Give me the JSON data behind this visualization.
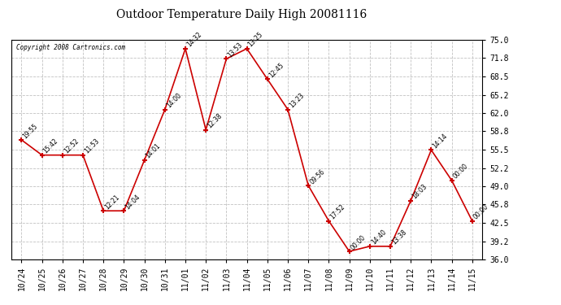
{
  "title": "Outdoor Temperature Daily High 20081116",
  "copyright": "Copyright 2008 Cartronics.com",
  "x_labels": [
    "10/24",
    "10/25",
    "10/26",
    "10/27",
    "10/28",
    "10/29",
    "10/30",
    "10/31",
    "11/01",
    "11/02",
    "11/03",
    "11/04",
    "11/05",
    "11/06",
    "11/07",
    "11/08",
    "11/09",
    "11/10",
    "11/11",
    "11/12",
    "11/13",
    "11/14",
    "11/15"
  ],
  "y_values": [
    57.2,
    54.5,
    54.5,
    54.5,
    44.6,
    44.6,
    53.6,
    62.6,
    73.4,
    59.0,
    71.6,
    73.4,
    68.0,
    62.6,
    49.1,
    42.8,
    37.4,
    38.3,
    38.3,
    46.4,
    55.4,
    50.0,
    42.8
  ],
  "time_labels": [
    "19:55",
    "15:42",
    "12:52",
    "11:53",
    "12:21",
    "14:04",
    "14:01",
    "14:00",
    "14:32",
    "12:38",
    "13:53",
    "13:25",
    "12:45",
    "13:23",
    "09:56",
    "17:52",
    "00:00",
    "14:40",
    "13:38",
    "18:03",
    "14:14",
    "00:00",
    "00:00"
  ],
  "line_color": "#cc0000",
  "marker_color": "#cc0000",
  "background_color": "#ffffff",
  "grid_color": "#bbbbbb",
  "ylim": [
    36.0,
    75.0
  ],
  "yticks": [
    36.0,
    39.2,
    42.5,
    45.8,
    49.0,
    52.2,
    55.5,
    58.8,
    62.0,
    65.2,
    68.5,
    71.8,
    75.0
  ]
}
